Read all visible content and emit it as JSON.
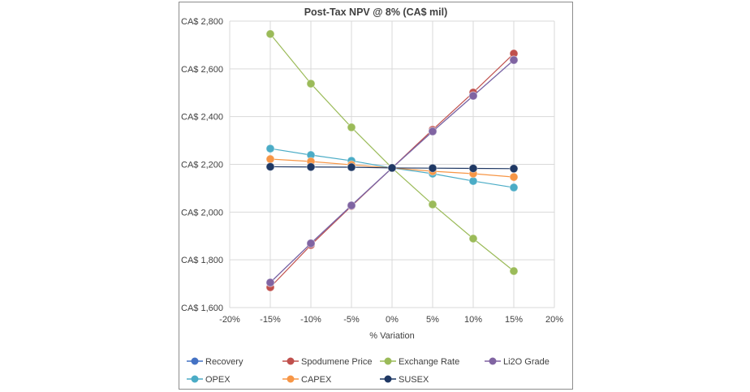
{
  "chart_data": {
    "type": "line",
    "title": "Post-Tax NPV @ 8% (CA$ mil)",
    "xlabel": "% Variation",
    "ylabel": "",
    "x": [
      -15,
      -10,
      -5,
      0,
      5,
      10,
      15
    ],
    "xlim": [
      -20,
      20
    ],
    "x_tick_labels": [
      "-20%",
      "-15%",
      "-10%",
      "-5%",
      "0%",
      "5%",
      "10%",
      "15%",
      "20%"
    ],
    "x_ticks": [
      -20,
      -15,
      -10,
      -5,
      0,
      5,
      10,
      15,
      20
    ],
    "ylim": [
      1600,
      2800
    ],
    "y_ticks": [
      1600,
      1800,
      2000,
      2200,
      2400,
      2600,
      2800
    ],
    "y_tick_labels": [
      "CA$ 1,600",
      "CA$ 1,800",
      "CA$ 2,000",
      "CA$ 2,200",
      "CA$ 2,400",
      "CA$ 2,600",
      "CA$ 2,800"
    ],
    "grid": true,
    "legend_position": "bottom",
    "series": [
      {
        "name": "Recovery",
        "color": "#4472c4",
        "values": [
          1705,
          1869,
          2028,
          2185,
          2338,
          2487,
          2637
        ]
      },
      {
        "name": "Spodumene Price",
        "color": "#c0504d",
        "values": [
          1685,
          1862,
          2025,
          2185,
          2345,
          2501,
          2664
        ]
      },
      {
        "name": "Exchange Rate",
        "color": "#9bbb59",
        "values": [
          2746,
          2538,
          2355,
          2185,
          2032,
          1889,
          1753
        ]
      },
      {
        "name": "Li2O Grade",
        "color": "#8064a2",
        "values": [
          1705,
          1869,
          2028,
          2185,
          2338,
          2487,
          2637
        ]
      },
      {
        "name": "OPEX",
        "color": "#4bacc6",
        "values": [
          2266,
          2239,
          2215,
          2185,
          2161,
          2130,
          2103
        ]
      },
      {
        "name": "CAPEX",
        "color": "#f79646",
        "values": [
          2222,
          2212,
          2198,
          2185,
          2171,
          2161,
          2147
        ]
      },
      {
        "name": "SUSEX",
        "color": "#1f3864",
        "values": [
          2190,
          2189,
          2188,
          2185,
          2184,
          2183,
          2182
        ]
      }
    ]
  }
}
